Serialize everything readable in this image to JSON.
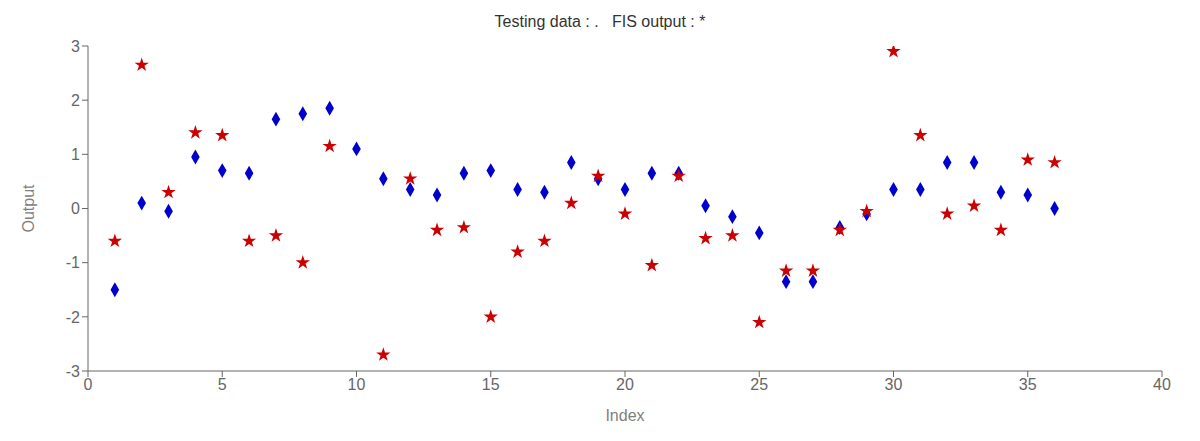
{
  "chart_data": {
    "type": "scatter",
    "title": "Testing data : .   FIS output : *",
    "x_label": "Index",
    "y_label": "Output",
    "xlim": [
      0,
      40
    ],
    "ylim": [
      -3,
      3
    ],
    "xticks": [
      0,
      5,
      10,
      15,
      20,
      25,
      30,
      35,
      40
    ],
    "yticks": [
      -3,
      -2,
      -1,
      0,
      1,
      2,
      3
    ],
    "grid": false,
    "series": [
      {
        "color": "#0000cc",
        "marker": "diamond",
        "x": [
          1,
          2,
          3,
          4,
          5,
          6,
          7,
          8,
          9,
          10,
          11,
          12,
          13,
          14,
          15,
          16,
          17,
          18,
          19,
          20,
          21,
          22,
          23,
          24,
          25,
          26,
          27,
          28,
          29,
          30,
          31,
          32,
          33,
          34,
          35,
          36
        ],
        "values": [
          -1.5,
          0.1,
          -0.05,
          0.95,
          0.7,
          0.65,
          1.65,
          1.75,
          1.85,
          1.1,
          0.55,
          0.35,
          0.25,
          0.65,
          0.7,
          0.35,
          0.3,
          0.85,
          0.55,
          0.35,
          0.65,
          0.65,
          0.05,
          -0.15,
          -0.45,
          -1.35,
          -1.35,
          -0.35,
          -0.1,
          0.35,
          0.35,
          0.85,
          0.85,
          0.3,
          0.25,
          0.0
        ]
      },
      {
        "color": "#cc0000",
        "marker": "star",
        "x": [
          1,
          2,
          3,
          4,
          5,
          6,
          7,
          8,
          9,
          11,
          12,
          13,
          14,
          15,
          16,
          17,
          18,
          19,
          20,
          21,
          22,
          23,
          24,
          25,
          26,
          27,
          28,
          29,
          30,
          31,
          32,
          33,
          34,
          35,
          36
        ],
        "values": [
          -0.6,
          2.65,
          0.3,
          1.4,
          1.35,
          -0.6,
          -0.5,
          -1.0,
          1.15,
          -2.7,
          0.55,
          -0.4,
          -0.35,
          -2.0,
          -0.8,
          -0.6,
          0.1,
          0.6,
          -0.1,
          -1.05,
          0.6,
          -0.55,
          -0.5,
          -2.1,
          -1.15,
          -1.15,
          -0.4,
          -0.05,
          2.9,
          1.35,
          -0.1,
          0.05,
          -0.4,
          0.9,
          0.85
        ]
      }
    ]
  }
}
